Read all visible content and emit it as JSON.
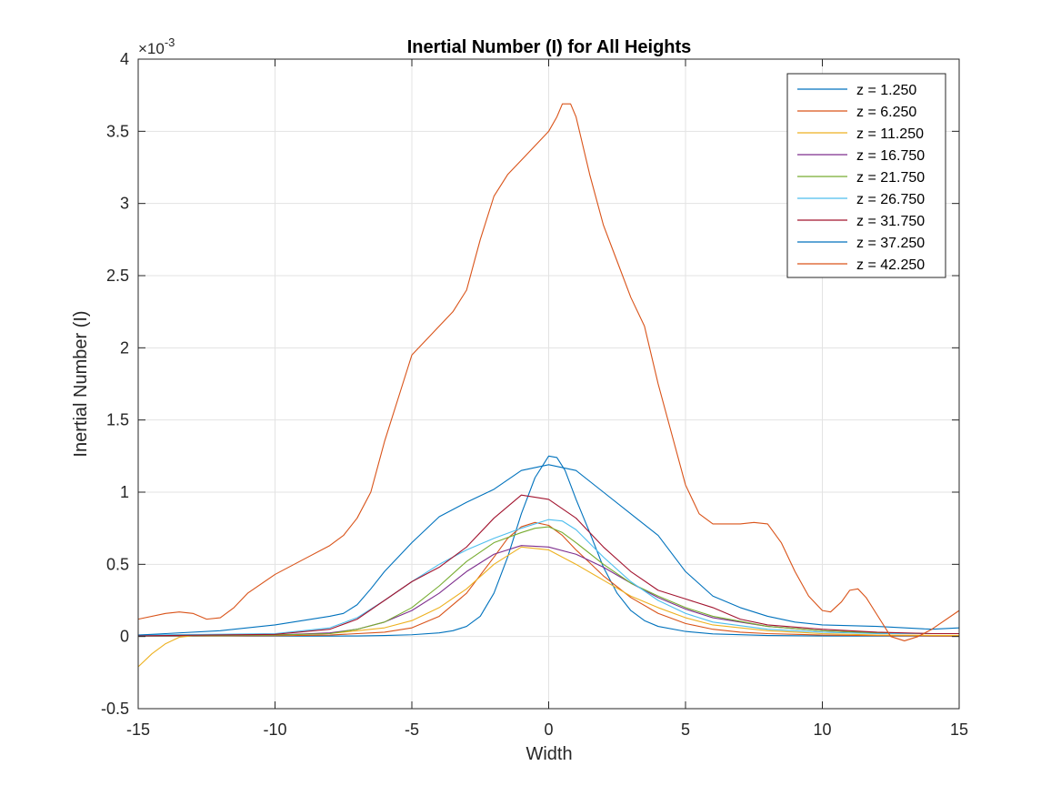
{
  "chart_data": {
    "type": "line",
    "title": "Inertial Number (I) for All Heights",
    "xlabel": "Width",
    "ylabel": "Inertial Number (I)",
    "y_exponent_label": "×10",
    "y_exponent_power": "-3",
    "xlim": [
      -15,
      15
    ],
    "ylim": [
      -0.5,
      4
    ],
    "xticks": [
      -15,
      -10,
      -5,
      0,
      5,
      10,
      15
    ],
    "xtick_labels": [
      "-15",
      "-10",
      "-5",
      "0",
      "5",
      "10",
      "15"
    ],
    "yticks": [
      -0.5,
      0,
      0.5,
      1,
      1.5,
      2,
      2.5,
      3,
      3.5,
      4
    ],
    "ytick_labels": [
      "-0.5",
      "0",
      "0.5",
      "1",
      "1.5",
      "2",
      "2.5",
      "3",
      "3.5",
      "4"
    ],
    "grid": true,
    "legend_position": "top-right",
    "series": [
      {
        "name": "z = 1.250",
        "color": "#0072BD",
        "x": [
          -15,
          -10,
          -8,
          -7,
          -6,
          -5,
          -4,
          -3.5,
          -3,
          -2.5,
          -2,
          -1.5,
          -1,
          -0.5,
          0,
          0.3,
          0.6,
          1,
          1.5,
          2,
          2.5,
          3,
          3.5,
          4,
          5,
          6,
          8,
          10,
          12,
          14,
          15
        ],
        "y": [
          0.002,
          0.003,
          0.003,
          0.004,
          0.007,
          0.012,
          0.025,
          0.04,
          0.07,
          0.14,
          0.3,
          0.55,
          0.85,
          1.1,
          1.25,
          1.24,
          1.15,
          0.95,
          0.72,
          0.48,
          0.3,
          0.18,
          0.11,
          0.07,
          0.035,
          0.018,
          0.007,
          0.004,
          0.003,
          0.003,
          0.003
        ]
      },
      {
        "name": "z = 6.250",
        "color": "#D95319",
        "x": [
          -15,
          -10,
          -8,
          -6,
          -5,
          -4,
          -3,
          -2,
          -1.5,
          -1,
          -0.5,
          0,
          0.5,
          1,
          2,
          3,
          4,
          5,
          6,
          7,
          8,
          10,
          12,
          14,
          15
        ],
        "y": [
          0.003,
          0.005,
          0.01,
          0.03,
          0.06,
          0.14,
          0.3,
          0.55,
          0.68,
          0.76,
          0.79,
          0.77,
          0.7,
          0.6,
          0.42,
          0.27,
          0.16,
          0.09,
          0.05,
          0.03,
          0.02,
          0.01,
          0.006,
          0.004,
          0.003
        ]
      },
      {
        "name": "z = 11.250",
        "color": "#EDB120",
        "x": [
          -15,
          -14.5,
          -14,
          -13.5,
          -13,
          -12,
          -10,
          -8,
          -6,
          -5,
          -4,
          -3,
          -2,
          -1,
          0,
          1,
          2,
          3,
          4,
          5,
          6,
          8,
          10,
          12,
          14,
          15
        ],
        "y": [
          -0.21,
          -0.12,
          -0.05,
          -0.005,
          0.005,
          0.005,
          0.01,
          0.02,
          0.06,
          0.11,
          0.2,
          0.33,
          0.5,
          0.62,
          0.6,
          0.5,
          0.39,
          0.28,
          0.2,
          0.13,
          0.08,
          0.04,
          0.02,
          0.01,
          0.008,
          0.008
        ]
      },
      {
        "name": "z = 16.750",
        "color": "#7E2F8E",
        "x": [
          -15,
          -10,
          -8,
          -7,
          -6,
          -5,
          -4,
          -3,
          -2,
          -1,
          0,
          1,
          2,
          3,
          4,
          5,
          6,
          8,
          10,
          12,
          14,
          15
        ],
        "y": [
          0.005,
          0.01,
          0.025,
          0.05,
          0.1,
          0.18,
          0.3,
          0.45,
          0.57,
          0.63,
          0.62,
          0.57,
          0.48,
          0.37,
          0.27,
          0.19,
          0.13,
          0.07,
          0.04,
          0.025,
          0.02,
          0.02
        ]
      },
      {
        "name": "z = 21.750",
        "color": "#77AC30",
        "x": [
          -15,
          -10,
          -8,
          -7,
          -6,
          -5,
          -4,
          -3,
          -2,
          -1,
          -0.5,
          0,
          0.5,
          1,
          2,
          3,
          4,
          5,
          6,
          8,
          10,
          12,
          14,
          15
        ],
        "y": [
          0.005,
          0.01,
          0.02,
          0.05,
          0.1,
          0.2,
          0.35,
          0.52,
          0.65,
          0.72,
          0.75,
          0.76,
          0.72,
          0.65,
          0.5,
          0.37,
          0.28,
          0.2,
          0.14,
          0.07,
          0.04,
          0.025,
          0.02,
          0.02
        ]
      },
      {
        "name": "z = 26.750",
        "color": "#4DBEEE",
        "x": [
          -15,
          -10,
          -8,
          -7,
          -6,
          -5,
          -4,
          -3,
          -2,
          -1,
          0,
          0.5,
          1,
          2,
          3,
          4,
          5,
          6,
          8,
          10,
          12,
          14,
          15
        ],
        "y": [
          0.01,
          0.02,
          0.06,
          0.13,
          0.25,
          0.38,
          0.5,
          0.6,
          0.68,
          0.75,
          0.81,
          0.8,
          0.74,
          0.55,
          0.38,
          0.25,
          0.16,
          0.1,
          0.05,
          0.03,
          0.02,
          0.02,
          0.02
        ]
      },
      {
        "name": "z = 31.750",
        "color": "#A2142F",
        "x": [
          -15,
          -10,
          -8,
          -7,
          -6,
          -5,
          -4,
          -3,
          -2,
          -1,
          0,
          1,
          2,
          3,
          4,
          5,
          6,
          7,
          8,
          10,
          12,
          14,
          15
        ],
        "y": [
          0.005,
          0.015,
          0.05,
          0.12,
          0.25,
          0.38,
          0.48,
          0.62,
          0.82,
          0.98,
          0.95,
          0.82,
          0.62,
          0.45,
          0.32,
          0.26,
          0.2,
          0.12,
          0.08,
          0.05,
          0.03,
          0.02,
          0.02
        ]
      },
      {
        "name": "z = 37.250",
        "color": "#0072BD",
        "x": [
          -15,
          -14,
          -12,
          -10,
          -8,
          -7.5,
          -7,
          -6.5,
          -6,
          -5,
          -4,
          -3,
          -2,
          -1,
          0,
          1,
          2,
          3,
          4,
          5,
          6,
          7,
          8,
          9,
          10,
          12,
          14,
          15
        ],
        "y": [
          0.01,
          0.02,
          0.04,
          0.08,
          0.14,
          0.16,
          0.22,
          0.33,
          0.45,
          0.65,
          0.83,
          0.93,
          1.02,
          1.15,
          1.19,
          1.15,
          1.0,
          0.85,
          0.7,
          0.45,
          0.28,
          0.2,
          0.14,
          0.1,
          0.08,
          0.07,
          0.05,
          0.06
        ]
      },
      {
        "name": "z = 42.250",
        "color": "#D95319",
        "x": [
          -15,
          -14,
          -13.5,
          -13,
          -12.5,
          -12,
          -11.5,
          -11,
          -10,
          -9,
          -8,
          -7.5,
          -7,
          -6.5,
          -6,
          -5.5,
          -5,
          -4.5,
          -4,
          -3.5,
          -3,
          -2.5,
          -2,
          -1.5,
          -1,
          -0.5,
          0,
          0.3,
          0.5,
          0.8,
          1,
          1.5,
          2,
          2.5,
          3,
          3.5,
          4,
          4.5,
          5,
          5.5,
          6,
          6.5,
          7,
          7.5,
          8,
          8.5,
          9,
          9.5,
          10,
          10.3,
          10.7,
          11,
          11.3,
          11.6,
          12,
          12.5,
          13,
          13.5,
          14,
          15
        ],
        "y": [
          0.12,
          0.16,
          0.17,
          0.16,
          0.12,
          0.13,
          0.2,
          0.3,
          0.43,
          0.53,
          0.63,
          0.7,
          0.82,
          1.0,
          1.35,
          1.65,
          1.95,
          2.05,
          2.15,
          2.25,
          2.4,
          2.75,
          3.05,
          3.2,
          3.3,
          3.4,
          3.5,
          3.6,
          3.69,
          3.69,
          3.6,
          3.2,
          2.85,
          2.6,
          2.35,
          2.15,
          1.75,
          1.4,
          1.05,
          0.85,
          0.78,
          0.78,
          0.78,
          0.79,
          0.78,
          0.65,
          0.45,
          0.28,
          0.18,
          0.17,
          0.24,
          0.32,
          0.33,
          0.27,
          0.15,
          0.0,
          -0.03,
          0.0,
          0.05,
          0.18
        ]
      }
    ]
  }
}
